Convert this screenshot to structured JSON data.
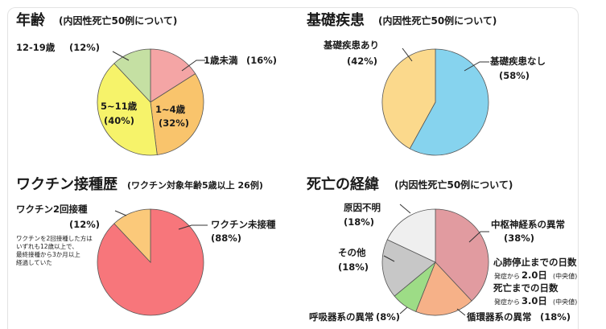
{
  "panels": {
    "age": {
      "title": "年齢",
      "subtitle": "(内因性死亡50例について)"
    },
    "disease": {
      "title": "基礎疾患",
      "subtitle": "(内因性死亡50例について)"
    },
    "vaccine": {
      "title": "ワクチン接種歴",
      "subtitle": "(ワクチン対象年齢5歳以上 26例)",
      "note_lines": [
        "ワクチンを2回接種した方は",
        "いずれも12歳以上で、",
        "最終接種から3か月以上",
        "経過していた"
      ]
    },
    "course": {
      "title": "死亡の経緯",
      "subtitle": "(内因性死亡50例について)",
      "stats": {
        "cardiac_title": "心肺停止までの日数",
        "cardiac_prefix": "発症から",
        "cardiac_value": "2.0日",
        "cardiac_suffix": "(中央値)",
        "death_title": "死亡までの日数",
        "death_prefix": "発症から",
        "death_value": "3.0日",
        "death_suffix": "(中央値)"
      }
    }
  },
  "chart_data": [
    {
      "type": "pie",
      "title": "年齢",
      "slices": [
        {
          "label": "1歳未満",
          "value": 16,
          "pct": "(16%)",
          "color": "#f4a5a5"
        },
        {
          "label": "1~4歳",
          "value": 32,
          "pct": "(32%)",
          "color": "#f9c46c"
        },
        {
          "label": "5~11歳",
          "value": 40,
          "pct": "(40%)",
          "color": "#f6f36a"
        },
        {
          "label": "12-19歳",
          "value": 12,
          "pct": "(12%)",
          "color": "#c5e0a3"
        }
      ]
    },
    {
      "type": "pie",
      "title": "基礎疾患",
      "slices": [
        {
          "label": "基礎疾患なし",
          "value": 58,
          "pct": "(58%)",
          "color": "#86d3ee"
        },
        {
          "label": "基礎疾患あり",
          "value": 42,
          "pct": "(42%)",
          "color": "#fbd98c"
        }
      ]
    },
    {
      "type": "pie",
      "title": "ワクチン接種歴",
      "slices": [
        {
          "label": "ワクチン未接種",
          "value": 88,
          "pct": "(88%)",
          "color": "#f7767b"
        },
        {
          "label": "ワクチン2回接種",
          "value": 12,
          "pct": "(12%)",
          "color": "#fbc97a"
        }
      ]
    },
    {
      "type": "pie",
      "title": "死亡の経緯",
      "slices": [
        {
          "label": "中枢神経系の異常",
          "value": 38,
          "pct": "(38%)",
          "color": "#e19ba0"
        },
        {
          "label": "循環器系の異常",
          "value": 18,
          "pct": "(18%)",
          "color": "#f6b188"
        },
        {
          "label": "呼吸器系の異常",
          "value": 8,
          "pct": "(8%)",
          "color": "#9ddc86"
        },
        {
          "label": "その他",
          "value": 18,
          "pct": "(18%)",
          "color": "#c7c7c7"
        },
        {
          "label": "原因不明",
          "value": 18,
          "pct": "(18%)",
          "color": "#efefef"
        }
      ]
    }
  ]
}
